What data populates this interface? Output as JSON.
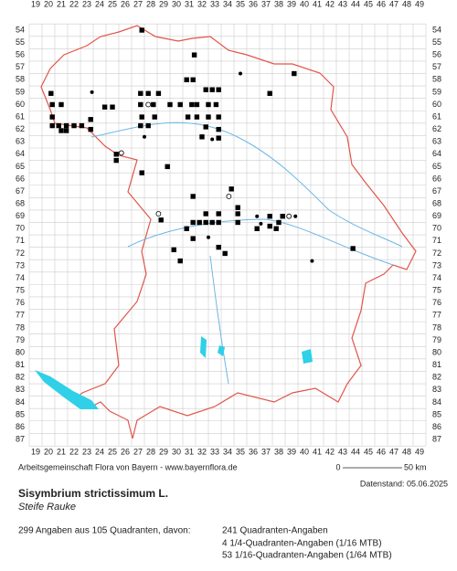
{
  "map": {
    "columns": [
      19,
      20,
      21,
      22,
      23,
      24,
      25,
      26,
      27,
      28,
      29,
      30,
      31,
      32,
      33,
      34,
      35,
      36,
      37,
      38,
      39,
      40,
      41,
      42,
      43,
      44,
      45,
      46,
      47,
      48,
      49
    ],
    "rows": [
      54,
      55,
      56,
      57,
      58,
      59,
      60,
      61,
      62,
      63,
      64,
      65,
      66,
      67,
      68,
      69,
      70,
      71,
      72,
      73,
      74,
      75,
      76,
      77,
      78,
      79,
      80,
      81,
      82,
      83,
      84,
      85,
      86,
      87
    ],
    "markers": {
      "squares": [
        [
          27.3,
          54
        ],
        [
          31.4,
          56
        ],
        [
          39.2,
          57.5
        ],
        [
          30.8,
          58
        ],
        [
          31.3,
          58
        ],
        [
          32.3,
          58.8
        ],
        [
          32.8,
          58.8
        ],
        [
          33.3,
          58.8
        ],
        [
          20.2,
          59.1
        ],
        [
          28.6,
          59.1
        ],
        [
          27.2,
          59.1
        ],
        [
          27.8,
          59.1
        ],
        [
          37.3,
          59.1
        ],
        [
          20.3,
          60
        ],
        [
          21,
          60
        ],
        [
          24.4,
          60.2
        ],
        [
          25,
          60.2
        ],
        [
          27.2,
          60
        ],
        [
          28.2,
          60
        ],
        [
          29.5,
          60
        ],
        [
          30.3,
          60
        ],
        [
          31.2,
          60
        ],
        [
          31.6,
          60
        ],
        [
          32.5,
          60
        ],
        [
          33.1,
          60
        ],
        [
          20.3,
          61
        ],
        [
          27.3,
          61
        ],
        [
          28.3,
          61
        ],
        [
          30.9,
          61
        ],
        [
          31.6,
          61
        ],
        [
          32.5,
          61
        ],
        [
          33.3,
          61
        ],
        [
          20.3,
          61.7
        ],
        [
          20.8,
          61.7
        ],
        [
          21.4,
          61.7
        ],
        [
          22,
          61.7
        ],
        [
          22.6,
          61.7
        ],
        [
          23.3,
          61.2
        ],
        [
          27.2,
          61.7
        ],
        [
          27.8,
          61.7
        ],
        [
          32.3,
          61.8
        ],
        [
          21,
          62.1
        ],
        [
          21.4,
          62.1
        ],
        [
          23.3,
          62
        ],
        [
          33.3,
          62
        ],
        [
          32,
          62.6
        ],
        [
          33.3,
          62.7
        ],
        [
          25.3,
          64
        ],
        [
          25.3,
          64.5
        ],
        [
          27.3,
          65.5
        ],
        [
          29.3,
          65
        ],
        [
          34.3,
          66.8
        ],
        [
          31.3,
          67.4
        ],
        [
          34.8,
          68.3
        ],
        [
          32.3,
          68.8
        ],
        [
          33.3,
          68.8
        ],
        [
          34.8,
          68.8
        ],
        [
          37.3,
          69
        ],
        [
          38.3,
          69
        ],
        [
          28.8,
          69.3
        ],
        [
          31.3,
          69.5
        ],
        [
          31.8,
          69.5
        ],
        [
          32.3,
          69.5
        ],
        [
          32.8,
          69.5
        ],
        [
          33.3,
          69.5
        ],
        [
          34.8,
          69.5
        ],
        [
          36.3,
          70
        ],
        [
          37.3,
          69.8
        ],
        [
          38,
          69.5
        ],
        [
          37.8,
          70
        ],
        [
          31.3,
          70.8
        ],
        [
          33.3,
          71.5
        ],
        [
          33.8,
          72
        ],
        [
          29.8,
          71.7
        ],
        [
          30.3,
          72.6
        ],
        [
          43.8,
          71.6
        ],
        [
          30.8,
          70
        ]
      ],
      "dots": [
        [
          23.4,
          59
        ],
        [
          35,
          57.5
        ],
        [
          27.5,
          62.6
        ],
        [
          32.8,
          62.8
        ],
        [
          36.6,
          69.6
        ],
        [
          36.3,
          69
        ],
        [
          32.5,
          70.7
        ],
        [
          39.3,
          69
        ],
        [
          40.6,
          72.6
        ]
      ],
      "open_circles": [
        [
          25.7,
          63.9
        ],
        [
          27.8,
          60
        ],
        [
          34.1,
          67.4
        ],
        [
          28.6,
          68.8
        ],
        [
          38.8,
          69
        ]
      ]
    },
    "credit": "Arbeitsgemeinschaft Flora von Bayern - www.bayernflora.de",
    "scale": {
      "start": "0",
      "end": "50 km"
    },
    "date": "Datenstand: 05.06.2025",
    "species": "Sisymbrium strictissimum L.",
    "common_name": "Steife Rauke",
    "summary": "299 Angaben aus 105 Quadranten, davon:",
    "counts": [
      "241 Quadranten-Angaben",
      "4 1/4-Quadranten-Angaben (1/16 MTB)",
      "53 1/16-Quadranten-Angaben (1/64 MTB)"
    ]
  }
}
